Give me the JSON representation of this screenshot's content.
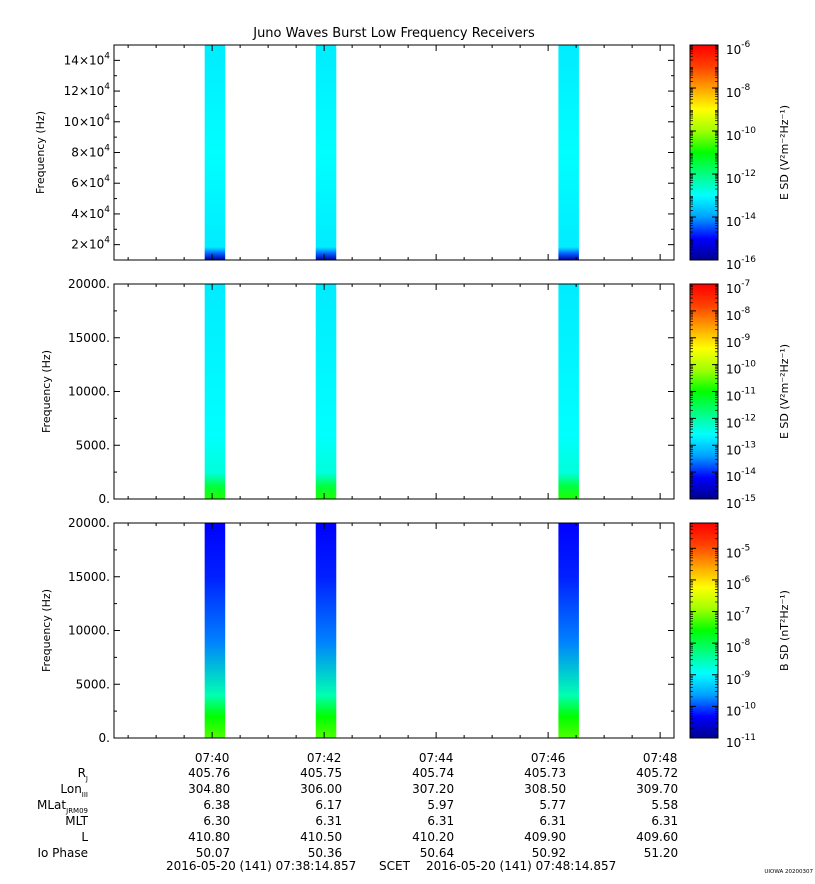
{
  "title": "Juno Waves Burst Low Frequency Receivers",
  "footer": {
    "start": "2016-05-20 (141) 07:38:14.857",
    "frame": "SCET",
    "end": "2016-05-20 (141) 07:48:14.857",
    "credit": "UIOWA 20200307"
  },
  "colors": {
    "background": "#ffffff",
    "colormap": [
      "#00008c",
      "#0000ff",
      "#00a0ff",
      "#00ffff",
      "#00ff80",
      "#00ff00",
      "#a0ff00",
      "#ffff00",
      "#ffa000",
      "#ff4000",
      "#ff0000"
    ]
  },
  "chart_data": [
    {
      "type": "heatmap",
      "xlabel": "",
      "ylabel": "Frequency (Hz)",
      "xlim": [
        "07:38:14.857",
        "07:48:14.857"
      ],
      "xticks": [
        "07:40",
        "07:42",
        "07:44",
        "07:46",
        "07:48"
      ],
      "ylim": [
        10000,
        150000
      ],
      "yticks": [
        {
          "value": 20000,
          "mant": "2×10",
          "exp": "4"
        },
        {
          "value": 40000,
          "mant": "4×10",
          "exp": "4"
        },
        {
          "value": 60000,
          "mant": "6×10",
          "exp": "4"
        },
        {
          "value": 80000,
          "mant": "8×10",
          "exp": "4"
        },
        {
          "value": 100000,
          "mant": "10×10",
          "exp": "4"
        },
        {
          "value": 120000,
          "mant": "12×10",
          "exp": "4"
        },
        {
          "value": 140000,
          "mant": "14×10",
          "exp": "4"
        }
      ],
      "bursts": [
        {
          "start": "07:39:52",
          "end": "07:40:14"
        },
        {
          "start": "07:41:51",
          "end": "07:42:13"
        },
        {
          "start": "07:46:11",
          "end": "07:46:33"
        }
      ],
      "colorbar": {
        "label": "E SD (V²m⁻²Hz⁻¹)",
        "log_range": [
          -16,
          -6
        ],
        "ticks": [
          {
            "value": -6,
            "mant": "10",
            "exp": "-6"
          },
          {
            "value": -8,
            "mant": "10",
            "exp": "-8"
          },
          {
            "value": -10,
            "mant": "10",
            "exp": "-10"
          },
          {
            "value": -12,
            "mant": "10",
            "exp": "-12"
          },
          {
            "value": -14,
            "mant": "10",
            "exp": "-14"
          },
          {
            "value": -16,
            "mant": "10",
            "exp": "-16"
          }
        ]
      }
    },
    {
      "type": "heatmap",
      "xlabel": "",
      "ylabel": "Frequency (Hz)",
      "xlim": [
        "07:38:14.857",
        "07:48:14.857"
      ],
      "xticks": [
        "07:40",
        "07:42",
        "07:44",
        "07:46",
        "07:48"
      ],
      "ylim": [
        0,
        20000
      ],
      "yticks": [
        {
          "value": 0,
          "mant": "0.",
          "exp": ""
        },
        {
          "value": 5000,
          "mant": "5000.",
          "exp": ""
        },
        {
          "value": 10000,
          "mant": "10000.",
          "exp": ""
        },
        {
          "value": 15000,
          "mant": "15000.",
          "exp": ""
        },
        {
          "value": 20000,
          "mant": "20000.",
          "exp": ""
        }
      ],
      "bursts": [
        {
          "start": "07:39:52",
          "end": "07:40:14"
        },
        {
          "start": "07:41:51",
          "end": "07:42:13"
        },
        {
          "start": "07:46:11",
          "end": "07:46:33"
        }
      ],
      "colorbar": {
        "label": "E SD (V²m⁻²Hz⁻¹)",
        "log_range": [
          -15,
          -7
        ],
        "ticks": [
          {
            "value": -7,
            "mant": "10",
            "exp": "-7"
          },
          {
            "value": -8,
            "mant": "10",
            "exp": "-8"
          },
          {
            "value": -9,
            "mant": "10",
            "exp": "-9"
          },
          {
            "value": -10,
            "mant": "10",
            "exp": "-10"
          },
          {
            "value": -11,
            "mant": "10",
            "exp": "-11"
          },
          {
            "value": -12,
            "mant": "10",
            "exp": "-12"
          },
          {
            "value": -13,
            "mant": "10",
            "exp": "-13"
          },
          {
            "value": -14,
            "mant": "10",
            "exp": "-14"
          },
          {
            "value": -15,
            "mant": "10",
            "exp": "-15"
          }
        ]
      }
    },
    {
      "type": "heatmap",
      "xlabel": "",
      "ylabel": "Frequency (Hz)",
      "xlim": [
        "07:38:14.857",
        "07:48:14.857"
      ],
      "xticks": [
        "07:40",
        "07:42",
        "07:44",
        "07:46",
        "07:48"
      ],
      "ylim": [
        0,
        20000
      ],
      "yticks": [
        {
          "value": 0,
          "mant": "0.",
          "exp": ""
        },
        {
          "value": 5000,
          "mant": "5000.",
          "exp": ""
        },
        {
          "value": 10000,
          "mant": "10000.",
          "exp": ""
        },
        {
          "value": 15000,
          "mant": "15000.",
          "exp": ""
        },
        {
          "value": 20000,
          "mant": "20000.",
          "exp": ""
        }
      ],
      "bursts": [
        {
          "start": "07:39:52",
          "end": "07:40:14"
        },
        {
          "start": "07:41:51",
          "end": "07:42:13"
        },
        {
          "start": "07:46:11",
          "end": "07:46:33"
        }
      ],
      "colorbar": {
        "label": "B SD (nT²Hz⁻¹)",
        "log_range": [
          -11,
          -4.2
        ],
        "ticks": [
          {
            "value": -5,
            "mant": "10",
            "exp": "-5"
          },
          {
            "value": -6,
            "mant": "10",
            "exp": "-6"
          },
          {
            "value": -7,
            "mant": "10",
            "exp": "-7"
          },
          {
            "value": -8,
            "mant": "10",
            "exp": "-8"
          },
          {
            "value": -9,
            "mant": "10",
            "exp": "-9"
          },
          {
            "value": -10,
            "mant": "10",
            "exp": "-10"
          },
          {
            "value": -11,
            "mant": "10",
            "exp": "-11"
          }
        ]
      }
    }
  ],
  "ephemeris": {
    "rows": [
      {
        "label": "R",
        "sub": "J",
        "values": [
          "405.76",
          "405.75",
          "405.74",
          "405.73",
          "405.72"
        ]
      },
      {
        "label": "Lon",
        "sub": "III",
        "values": [
          "304.80",
          "306.00",
          "307.20",
          "308.50",
          "309.70"
        ]
      },
      {
        "label": "MLat",
        "sub": "JRM09",
        "values": [
          "6.38",
          "6.17",
          "5.97",
          "5.77",
          "5.58"
        ]
      },
      {
        "label": "MLT",
        "sub": "",
        "values": [
          "6.30",
          "6.31",
          "6.31",
          "6.31",
          "6.31"
        ]
      },
      {
        "label": "L",
        "sub": "",
        "values": [
          "410.80",
          "410.50",
          "410.20",
          "409.90",
          "409.60"
        ]
      },
      {
        "label": "Io Phase",
        "sub": "",
        "values": [
          "50.07",
          "50.36",
          "50.64",
          "50.92",
          "51.20"
        ]
      }
    ]
  }
}
